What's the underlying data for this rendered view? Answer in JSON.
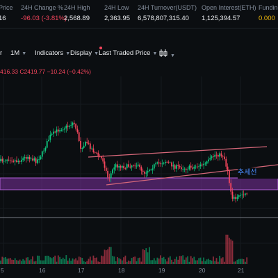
{
  "header": {
    "stats": [
      {
        "label": "Price",
        "value": "16",
        "tone": "normal"
      },
      {
        "label": "24H Change %",
        "value": "-96.03 (-3.81%)",
        "tone": "red"
      },
      {
        "label": "24H High",
        "value": "2,568.89",
        "tone": "normal"
      },
      {
        "label": "24H Low",
        "value": "2,363.95",
        "tone": "normal"
      },
      {
        "label": "24H Turnover(USDT)",
        "value": "6,578,807,315.40",
        "tone": "normal"
      },
      {
        "label": "Open Interest(ETH)",
        "value": "1,125,394.57",
        "tone": "normal"
      },
      {
        "label": "Funding",
        "value": "0.000",
        "tone": "gold"
      }
    ]
  },
  "toolbar": {
    "interval_label": "r",
    "month_label": "1M",
    "indicators_label": "Indicators",
    "display_label": "Display",
    "price_type_label": "Last Traded Price",
    "chart_style_icon": "candles-icon"
  },
  "ohlc": {
    "high_fragment": "416.33",
    "close_label": "C2419.77",
    "change": "−10.24 (−0.42%)"
  },
  "chart_annotation": {
    "label": "추세선"
  },
  "x_axis": {
    "labels": [
      "5",
      "16",
      "17",
      "18",
      "19",
      "20",
      "21"
    ]
  },
  "colors": {
    "up": "#0ecb81",
    "down": "#f6465d",
    "band": "#6b2d8a",
    "trendline": "#d7687a",
    "arrow": "#4a8cff"
  }
}
